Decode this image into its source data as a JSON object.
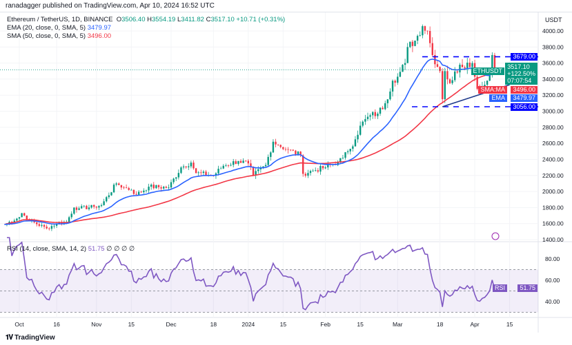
{
  "header": {
    "published": "ranadagger published on TradingView.com, Apr 10, 2024 16:52 UTC"
  },
  "legend": {
    "symbol": "Ethereum / TetherUS, 1D, BINANCE",
    "o_label": "O",
    "o": "3506.40",
    "h_label": "H",
    "h": "3554.19",
    "l_label": "L",
    "l": "3411.82",
    "c_label": "C",
    "c": "3517.10",
    "change": "+10.71 (+0.31%)",
    "ema": "EMA (20, close, 0, SMA, 5)",
    "ema_val": "3479.97",
    "sma": "SMA (50, close, 0, SMA, 5)",
    "sma_val": "3496.00",
    "rsi": "RSI (14, close, SMA, 14, 2)",
    "rsi_val": "51.75",
    "rsi_extra": "∅ ∅ ∅ ∅"
  },
  "currency": "USDT",
  "price_labels": {
    "resistance": "3679.00",
    "support": "3056.00",
    "symbol": "ETHUSDT",
    "last": "3517.10",
    "pct": "+122.50%",
    "countdown": "07:07:54",
    "sma_name": "SMA:MA",
    "sma": "3496.00",
    "ema_name": "EMA",
    "ema": "3479.97",
    "rsi_name": "RSI",
    "rsi": "51.75"
  },
  "colors": {
    "up": "#089981",
    "down": "#f23645",
    "ema": "#2962ff",
    "sma": "#f23645",
    "rsi": "#7e57c2",
    "levels": "#0000ff",
    "trendline": "#1e3a8a"
  },
  "chart_data": {
    "type": "candlestick",
    "yaxis_ticks": [
      1400,
      1600,
      1800,
      2000,
      2200,
      2400,
      2600,
      2800,
      3000,
      3200,
      3400,
      3600,
      3800,
      4000
    ],
    "ylim": [
      1400,
      4000
    ],
    "rsi_ticks": [
      "40.00",
      "60.00",
      "80.00"
    ],
    "rsi_levels": [
      30,
      50,
      70
    ],
    "x_ticks": [
      [
        "2023-10-01",
        "Oct"
      ],
      [
        "2023-10-16",
        "16"
      ],
      [
        "2023-11-01",
        "Nov"
      ],
      [
        "2023-11-15",
        "15"
      ],
      [
        "2023-12-01",
        "Dec"
      ],
      [
        "2023-12-18",
        "18"
      ],
      [
        "2024-01-01",
        "2024"
      ],
      [
        "2024-01-15",
        "15"
      ],
      [
        "2024-02-01",
        "Feb"
      ],
      [
        "2024-02-15",
        "15"
      ],
      [
        "2024-03-01",
        "Mar"
      ],
      [
        "2024-03-18",
        "18"
      ],
      [
        "2024-04-01",
        "Apr"
      ],
      [
        "2024-04-15",
        "15"
      ]
    ],
    "horizontal_levels": [
      3679,
      3056
    ],
    "trendline": [
      [
        "2024-03-19",
        3056
      ],
      [
        "2024-04-15",
        3330
      ]
    ],
    "close_keypoints": [
      [
        "2023-09-25",
        1590
      ],
      [
        "2023-10-01",
        1680
      ],
      [
        "2023-10-02",
        1730
      ],
      [
        "2023-10-05",
        1640
      ],
      [
        "2023-10-12",
        1540
      ],
      [
        "2023-10-16",
        1600
      ],
      [
        "2023-10-20",
        1620
      ],
      [
        "2023-10-23",
        1800
      ],
      [
        "2023-10-25",
        1790
      ],
      [
        "2023-10-31",
        1810
      ],
      [
        "2023-11-03",
        1830
      ],
      [
        "2023-11-09",
        2100
      ],
      [
        "2023-11-12",
        2050
      ],
      [
        "2023-11-15",
        2020
      ],
      [
        "2023-11-17",
        1960
      ],
      [
        "2023-11-22",
        2060
      ],
      [
        "2023-11-30",
        2050
      ],
      [
        "2023-12-05",
        2300
      ],
      [
        "2023-12-09",
        2360
      ],
      [
        "2023-12-11",
        2230
      ],
      [
        "2023-12-18",
        2200
      ],
      [
        "2023-12-22",
        2320
      ],
      [
        "2023-12-28",
        2380
      ],
      [
        "2024-01-01",
        2350
      ],
      [
        "2024-01-03",
        2200
      ],
      [
        "2024-01-08",
        2330
      ],
      [
        "2024-01-11",
        2620
      ],
      [
        "2024-01-13",
        2580
      ],
      [
        "2024-01-17",
        2520
      ],
      [
        "2024-01-22",
        2450
      ],
      [
        "2024-01-23",
        2220
      ],
      [
        "2024-01-27",
        2260
      ],
      [
        "2024-02-01",
        2300
      ],
      [
        "2024-02-06",
        2370
      ],
      [
        "2024-02-08",
        2420
      ],
      [
        "2024-02-10",
        2500
      ],
      [
        "2024-02-13",
        2650
      ],
      [
        "2024-02-15",
        2820
      ],
      [
        "2024-02-19",
        2950
      ],
      [
        "2024-02-22",
        2970
      ],
      [
        "2024-02-25",
        3100
      ],
      [
        "2024-02-28",
        3380
      ],
      [
        "2024-03-01",
        3430
      ],
      [
        "2024-03-04",
        3600
      ],
      [
        "2024-03-05",
        3800
      ],
      [
        "2024-03-08",
        3880
      ],
      [
        "2024-03-11",
        4060
      ],
      [
        "2024-03-13",
        4000
      ],
      [
        "2024-03-15",
        3700
      ],
      [
        "2024-03-18",
        3500
      ],
      [
        "2024-03-19",
        3150
      ],
      [
        "2024-03-20",
        3500
      ],
      [
        "2024-03-22",
        3350
      ],
      [
        "2024-03-26",
        3580
      ],
      [
        "2024-03-31",
        3600
      ],
      [
        "2024-04-02",
        3280
      ],
      [
        "2024-04-05",
        3330
      ],
      [
        "2024-04-07",
        3450
      ],
      [
        "2024-04-08",
        3700
      ],
      [
        "2024-04-09",
        3506
      ],
      [
        "2024-04-10",
        3517
      ]
    ]
  },
  "footer": {
    "brand": "TradingView"
  }
}
